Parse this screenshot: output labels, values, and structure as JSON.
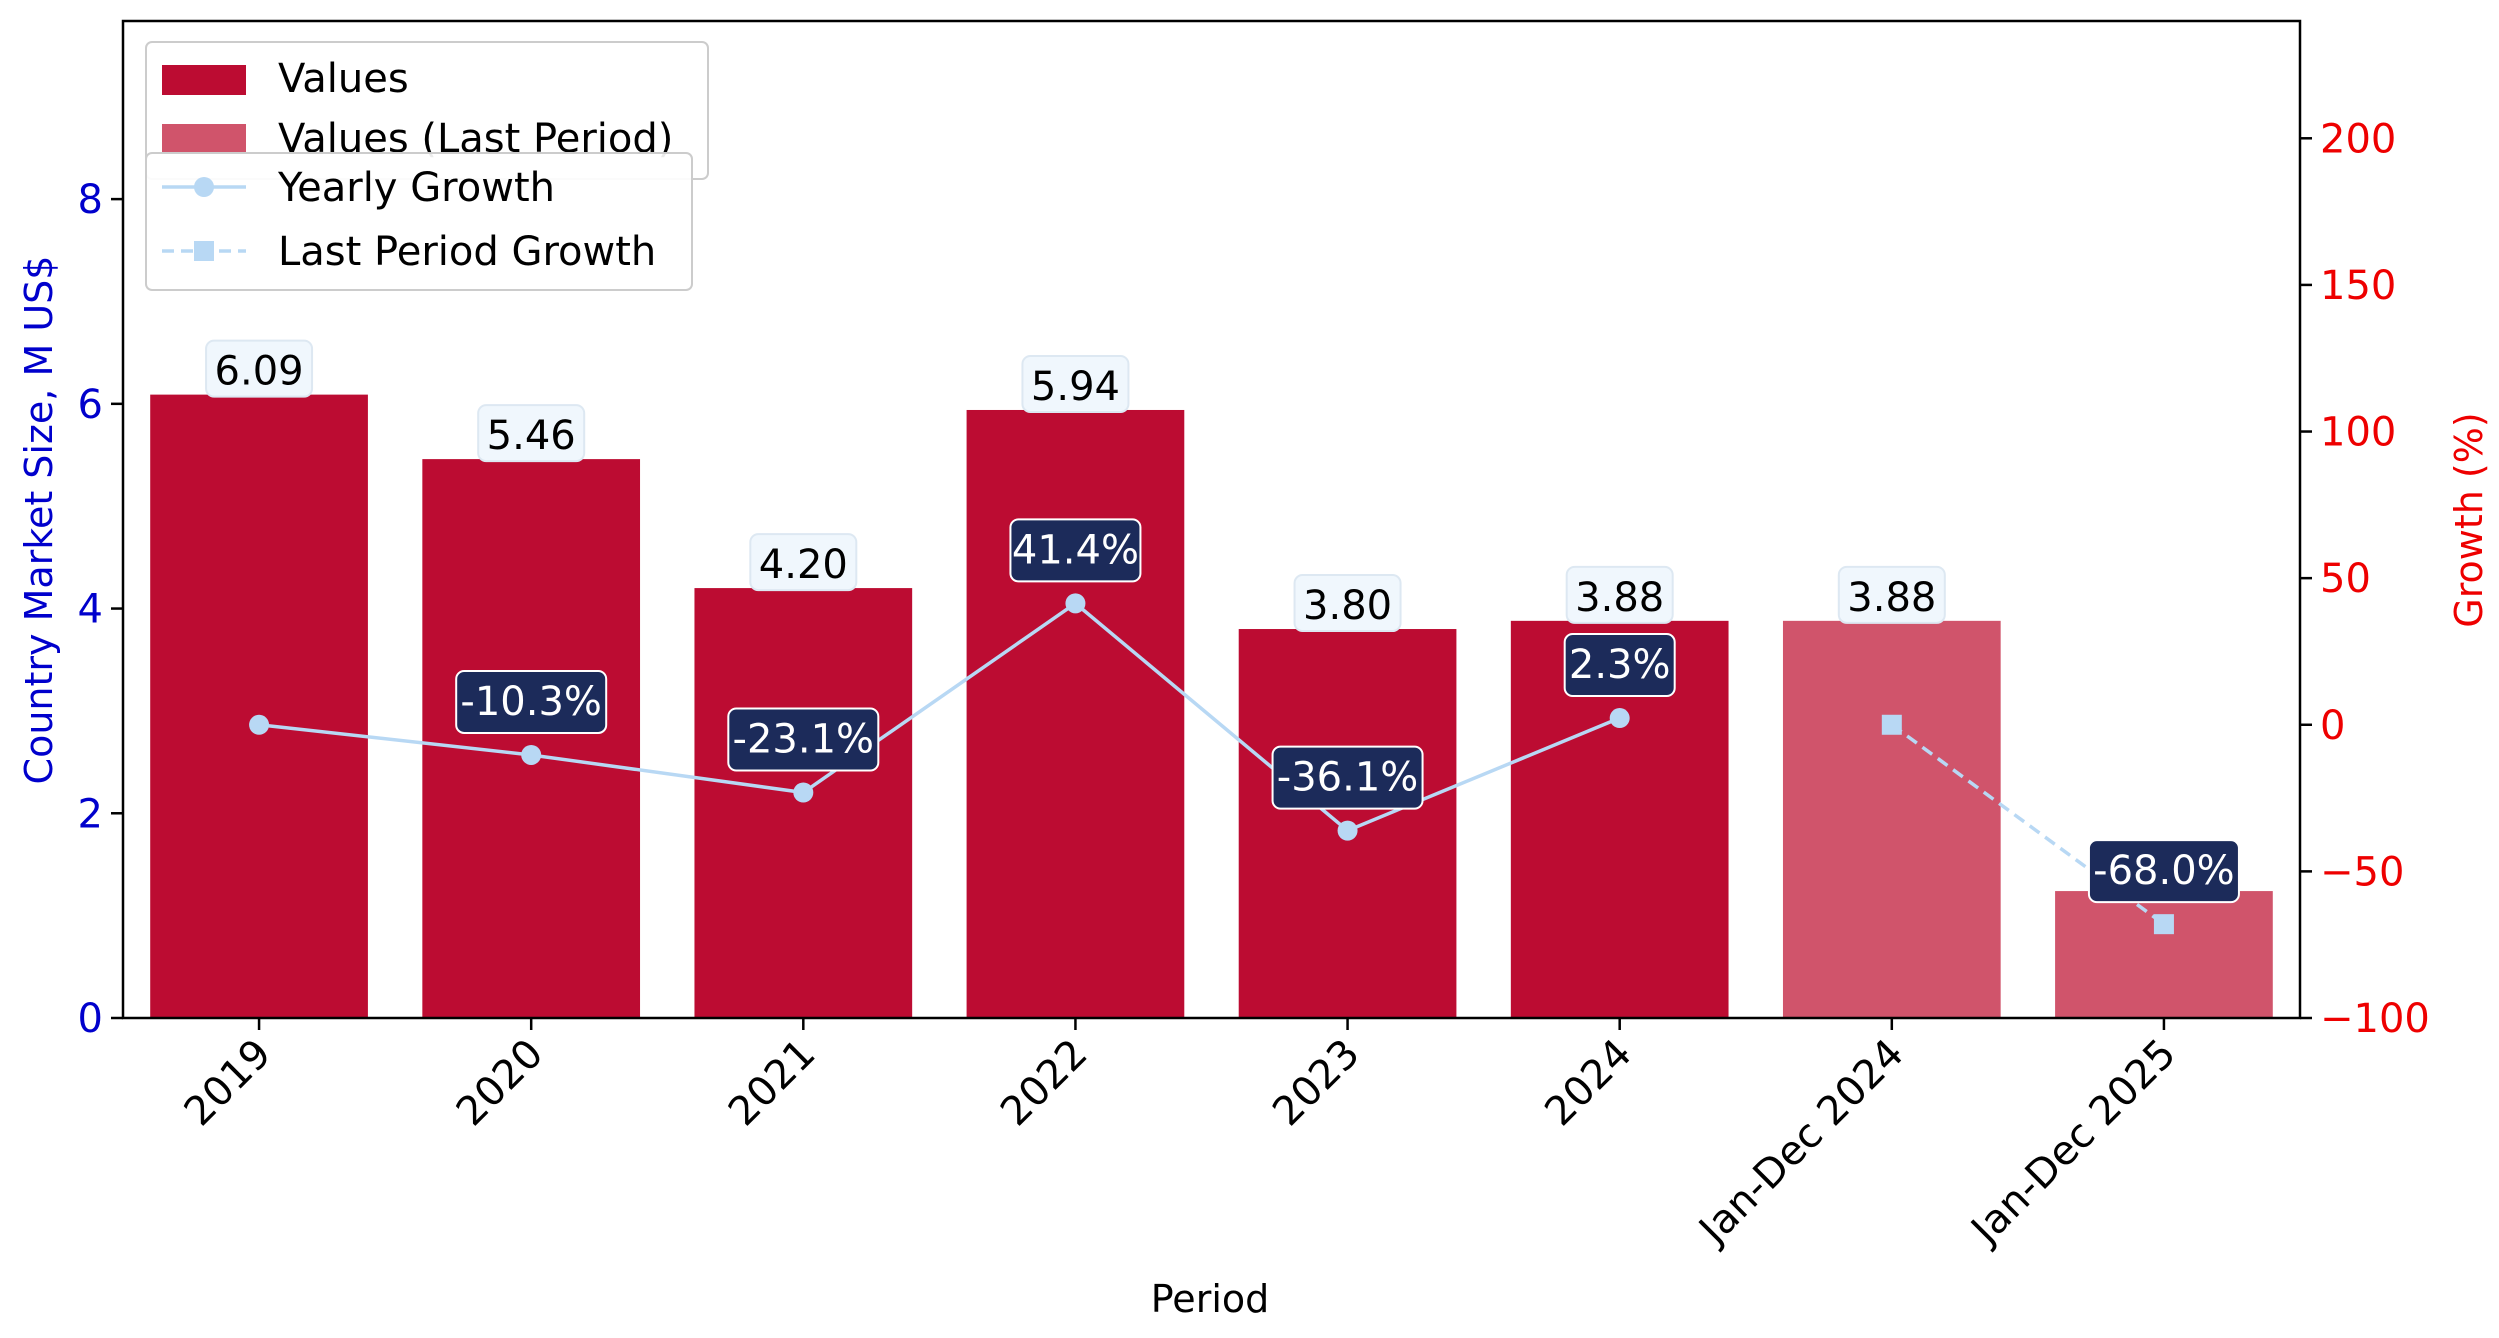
{
  "chart_data": {
    "type": "bar",
    "categories": [
      "2019",
      "2020",
      "2021",
      "2022",
      "2023",
      "2024",
      "Jan-Dec 2024",
      "Jan-Dec 2025"
    ],
    "xlabel": "Period",
    "ylabel": "Country Market Size, M US$",
    "y2label": "Growth (%)",
    "ylim": [
      0,
      9.74
    ],
    "y2lim": [
      -100,
      240
    ],
    "yticks": [
      0,
      2,
      4,
      6,
      8
    ],
    "y2ticks": [
      -100,
      -50,
      0,
      50,
      100,
      150,
      200
    ],
    "y2tick_labels": [
      "−100",
      "−50",
      "0",
      "50",
      "100",
      "150",
      "200"
    ],
    "series": [
      {
        "name": "Values",
        "type": "bar",
        "color": "#bc0c32",
        "values": [
          6.09,
          5.46,
          4.2,
          5.94,
          3.8,
          3.88,
          null,
          null
        ],
        "labels": [
          "6.09",
          "5.46",
          "4.20",
          "5.94",
          "3.80",
          "3.88",
          "",
          ""
        ]
      },
      {
        "name": "Values (Last Period)",
        "type": "bar",
        "color": "#d0546b",
        "values": [
          null,
          null,
          null,
          null,
          null,
          null,
          3.88,
          1.24
        ],
        "labels": [
          "",
          "",
          "",
          "",
          "",
          "",
          "3.88",
          ""
        ]
      },
      {
        "name": "Yearly Growth",
        "type": "line",
        "axis": "right",
        "marker": "circle",
        "dash": "solid",
        "color": "#b8d8f4",
        "values": [
          0,
          -10.3,
          -23.1,
          41.4,
          -36.1,
          2.3,
          null,
          null
        ],
        "labels": [
          "",
          "-10.3%",
          "-23.1%",
          "41.4%",
          "-36.1%",
          "2.3%",
          "",
          ""
        ]
      },
      {
        "name": "Last Period Growth",
        "type": "line",
        "axis": "right",
        "marker": "square",
        "dash": "dashed",
        "color": "#b8d8f4",
        "values": [
          null,
          null,
          null,
          null,
          null,
          null,
          0,
          -68.0
        ],
        "labels": [
          "",
          "",
          "",
          "",
          "",
          "",
          "",
          "-68.0%"
        ]
      }
    ],
    "legend_placement": "top-left",
    "grid": false,
    "colors": {
      "left_axis": "#0000cc",
      "right_axis": "#ee0000",
      "value_label_bg": "#f0f7fd",
      "growth_label_bg": "#1c2b5a"
    }
  }
}
